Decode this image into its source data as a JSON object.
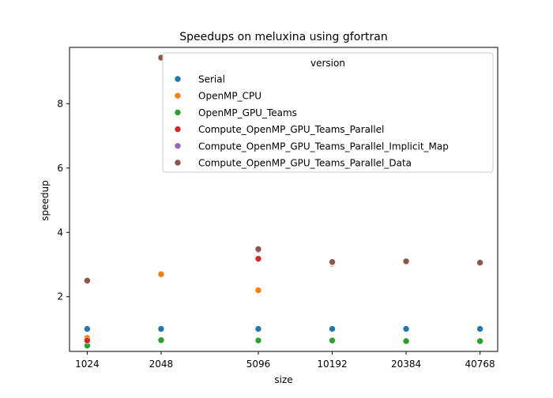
{
  "chart_data": {
    "type": "scatter",
    "title": "Speedups on meluxina using gfortran",
    "xlabel": "size",
    "ylabel": "speedup",
    "x_scale": "log2",
    "x_ticks": [
      1024,
      2048,
      5096,
      10192,
      20384,
      40768
    ],
    "y_ticks": [
      2,
      4,
      6,
      8
    ],
    "ylim": [
      0.3,
      9.75
    ],
    "grid": false,
    "legend_title": "version",
    "legend_position": "top-right",
    "series": [
      {
        "name": "Serial",
        "color": "#1f77b4",
        "points": [
          [
            1024,
            1.0
          ],
          [
            2048,
            1.0
          ],
          [
            5096,
            1.0
          ],
          [
            10192,
            1.0
          ],
          [
            20384,
            1.0
          ],
          [
            40768,
            1.0
          ]
        ]
      },
      {
        "name": "OpenMP_CPU",
        "color": "#ff7f0e",
        "points": [
          [
            1024,
            0.72
          ],
          [
            2048,
            2.7
          ],
          [
            5096,
            2.2
          ],
          [
            10192,
            3.02
          ],
          [
            20384,
            3.09
          ],
          [
            40768,
            3.05
          ]
        ]
      },
      {
        "name": "OpenMP_GPU_Teams",
        "color": "#2ca02c",
        "points": [
          [
            1024,
            0.48
          ],
          [
            2048,
            0.65
          ],
          [
            5096,
            0.64
          ],
          [
            10192,
            0.64
          ],
          [
            20384,
            0.62
          ],
          [
            40768,
            0.62
          ]
        ]
      },
      {
        "name": "Compute_OpenMP_GPU_Teams_Parallel",
        "color": "#d62728",
        "points": [
          [
            1024,
            0.64
          ],
          [
            2048,
            9.42
          ],
          [
            5096,
            3.18
          ],
          [
            10192,
            3.05
          ],
          [
            20384,
            3.09
          ],
          [
            40768,
            3.05
          ]
        ]
      },
      {
        "name": "Compute_OpenMP_GPU_Teams_Parallel_Implicit_Map",
        "color": "#9467bd",
        "points": [
          [
            1024,
            2.5
          ],
          [
            2048,
            9.44
          ],
          [
            5096,
            3.45
          ],
          [
            10192,
            3.06
          ],
          [
            20384,
            3.1
          ],
          [
            40768,
            3.06
          ]
        ]
      },
      {
        "name": "Compute_OpenMP_GPU_Teams_Parallel_Data",
        "color": "#8c564b",
        "points": [
          [
            1024,
            2.5
          ],
          [
            2048,
            9.43
          ],
          [
            5096,
            3.48
          ],
          [
            10192,
            3.08
          ],
          [
            20384,
            3.1
          ],
          [
            40768,
            3.06
          ]
        ]
      }
    ]
  }
}
